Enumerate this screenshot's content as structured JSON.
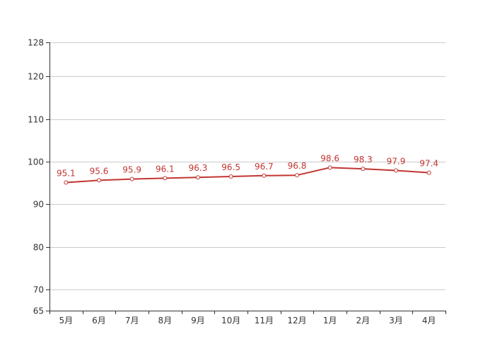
{
  "chart_data": {
    "type": "line",
    "title": "",
    "xlabel": "",
    "ylabel": "",
    "categories": [
      "5月",
      "6月",
      "7月",
      "8月",
      "9月",
      "10月",
      "11月",
      "12月",
      "1月",
      "2月",
      "3月",
      "4月"
    ],
    "series": [
      {
        "values": [
          95.1,
          95.6,
          95.9,
          96.1,
          96.3,
          96.5,
          96.7,
          96.8,
          98.6,
          98.3,
          97.9,
          97.4
        ],
        "color": "#c23531",
        "marker": "hollow-circle",
        "show_data_labels": true
      }
    ],
    "ylim": [
      65,
      128
    ],
    "yticks": [
      65,
      70,
      80,
      90,
      100,
      110,
      120,
      128
    ],
    "grid": true,
    "legend": "none"
  }
}
